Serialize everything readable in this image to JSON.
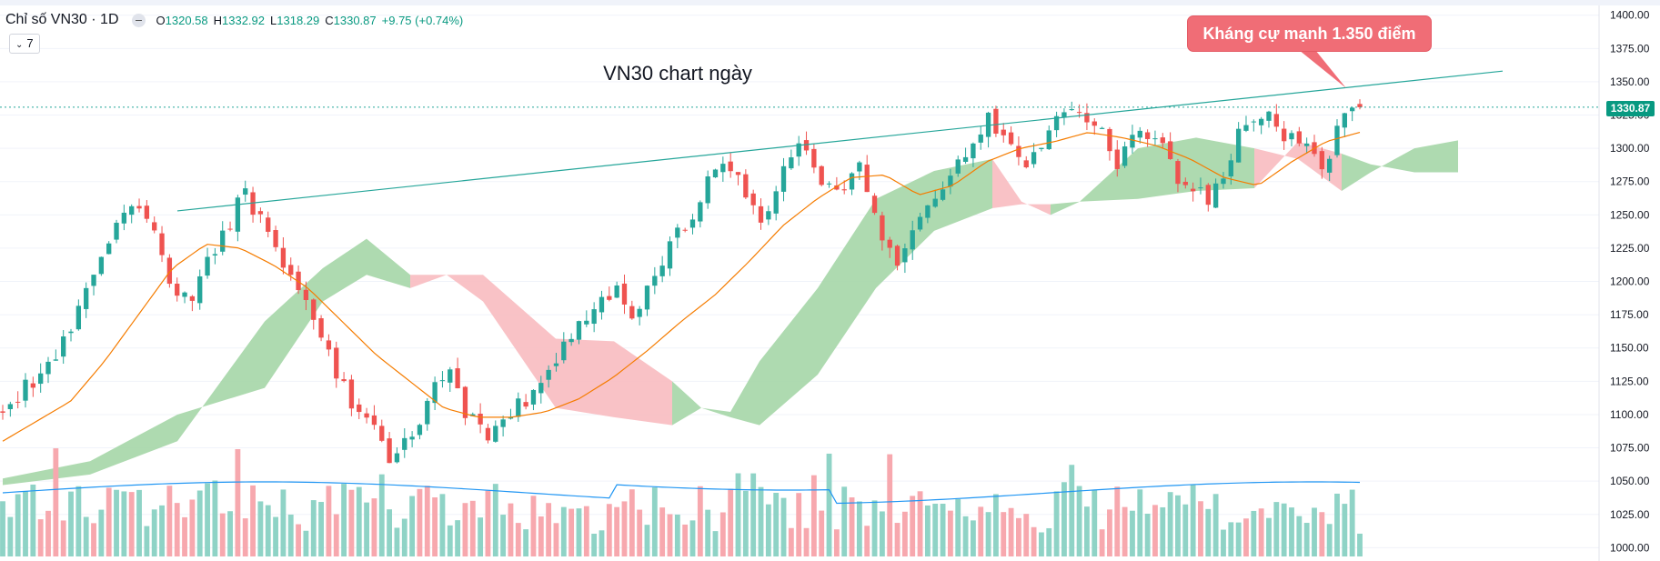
{
  "header": {
    "symbol": "Chỉ số VN30 · 1D",
    "o_key": "O",
    "open": "1320.58",
    "h_key": "H",
    "high": "1332.92",
    "l_key": "L",
    "low": "1318.29",
    "c_key": "C",
    "close": "1330.87",
    "change": "+9.75 (+0.74%)",
    "indicators_count": "7"
  },
  "annotations": {
    "title": "VN30 chart ngày",
    "callout": "Kháng cự mạnh 1.350 điểm"
  },
  "chart_data": {
    "type": "candlestick",
    "title": "VN30 chart ngày",
    "symbol": "Chỉ số VN30",
    "interval": "1D",
    "y_axis": {
      "range": [
        990,
        1408
      ],
      "ticks": [
        "1400.00",
        "1375.00",
        "1350.00",
        "1325.00",
        "1300.00",
        "1275.00",
        "1250.00",
        "1225.00",
        "1200.00",
        "1175.00",
        "1150.00",
        "1125.00",
        "1100.00",
        "1075.00",
        "1050.00",
        "1025.00",
        "1000.00"
      ]
    },
    "last_price": "1330.87",
    "last_price_value": 1330.87,
    "close_waypoints": [
      1100,
      1118,
      1132,
      1145,
      1180,
      1210,
      1240,
      1262,
      1250,
      1195,
      1185,
      1215,
      1240,
      1265,
      1245,
      1220,
      1190,
      1160,
      1130,
      1100,
      1090,
      1060,
      1085,
      1115,
      1130,
      1100,
      1085,
      1095,
      1110,
      1125,
      1150,
      1170,
      1180,
      1192,
      1170,
      1200,
      1230,
      1250,
      1275,
      1290,
      1265,
      1240,
      1285,
      1300,
      1280,
      1260,
      1290,
      1250,
      1210,
      1238,
      1265,
      1280,
      1300,
      1320,
      1310,
      1285,
      1310,
      1330,
      1330,
      1315,
      1290,
      1315,
      1310,
      1280,
      1275,
      1260,
      1295,
      1322,
      1330,
      1310,
      1300,
      1285,
      1320,
      1330.87
    ],
    "candle_count": 180,
    "ma20_waypoints": [
      1080,
      1095,
      1110,
      1140,
      1175,
      1210,
      1228,
      1225,
      1212,
      1195,
      1170,
      1145,
      1125,
      1105,
      1098,
      1098,
      1102,
      1112,
      1128,
      1148,
      1170,
      1190,
      1215,
      1242,
      1262,
      1278,
      1280,
      1265,
      1272,
      1290,
      1300,
      1305,
      1312,
      1308,
      1302,
      1292,
      1278,
      1272,
      1290,
      1305,
      1312
    ],
    "ichimoku_cloud": [
      {
        "pos": 0.0,
        "a": 1047,
        "b": 1052,
        "trend": "up"
      },
      {
        "pos": 0.06,
        "a": 1055,
        "b": 1065,
        "trend": "up"
      },
      {
        "pos": 0.12,
        "a": 1080,
        "b": 1100,
        "trend": "up"
      },
      {
        "pos": 0.18,
        "a": 1170,
        "b": 1120,
        "trend": "up"
      },
      {
        "pos": 0.22,
        "a": 1210,
        "b": 1185,
        "trend": "up"
      },
      {
        "pos": 0.25,
        "a": 1232,
        "b": 1205,
        "trend": "up"
      },
      {
        "pos": 0.28,
        "a": 1205,
        "b": 1195,
        "trend": "up"
      },
      {
        "pos": 0.305,
        "a": 1205,
        "b": 1205,
        "trend": "down"
      },
      {
        "pos": 0.33,
        "a": 1185,
        "b": 1205,
        "trend": "down"
      },
      {
        "pos": 0.38,
        "a": 1105,
        "b": 1157,
        "trend": "down"
      },
      {
        "pos": 0.42,
        "a": 1098,
        "b": 1155,
        "trend": "down"
      },
      {
        "pos": 0.46,
        "a": 1092,
        "b": 1125,
        "trend": "down"
      },
      {
        "pos": 0.48,
        "a": 1105,
        "b": 1105,
        "trend": "up"
      },
      {
        "pos": 0.5,
        "a": 1102,
        "b": 1098,
        "trend": "up"
      },
      {
        "pos": 0.52,
        "a": 1140,
        "b": 1092,
        "trend": "up"
      },
      {
        "pos": 0.56,
        "a": 1195,
        "b": 1130,
        "trend": "up"
      },
      {
        "pos": 0.6,
        "a": 1262,
        "b": 1195,
        "trend": "up"
      },
      {
        "pos": 0.64,
        "a": 1283,
        "b": 1238,
        "trend": "up"
      },
      {
        "pos": 0.68,
        "a": 1292,
        "b": 1255,
        "trend": "up"
      },
      {
        "pos": 0.7,
        "a": 1260,
        "b": 1258,
        "trend": "down"
      },
      {
        "pos": 0.72,
        "a": 1250,
        "b": 1258,
        "trend": "down"
      },
      {
        "pos": 0.74,
        "a": 1260,
        "b": 1260,
        "trend": "up"
      },
      {
        "pos": 0.78,
        "a": 1300,
        "b": 1262,
        "trend": "up"
      },
      {
        "pos": 0.82,
        "a": 1308,
        "b": 1268,
        "trend": "up"
      },
      {
        "pos": 0.86,
        "a": 1300,
        "b": 1270,
        "trend": "up"
      },
      {
        "pos": 0.89,
        "a": 1292,
        "b": 1305,
        "trend": "down"
      },
      {
        "pos": 0.92,
        "a": 1268,
        "b": 1296,
        "trend": "down"
      },
      {
        "pos": 0.94,
        "a": 1282,
        "b": 1288,
        "trend": "up"
      },
      {
        "pos": 0.97,
        "a": 1300,
        "b": 1282,
        "trend": "up"
      },
      {
        "pos": 1.0,
        "a": 1306,
        "b": 1282,
        "trend": "up"
      }
    ],
    "resistance_line": {
      "from": 1253,
      "to": 1358,
      "label_value": 1350
    },
    "volume": {
      "scale": "relative",
      "avg_level": 0.4
    }
  },
  "colors": {
    "up": "#26a69a",
    "down": "#ef5350",
    "up_volume": "#8fd3c6",
    "down_volume": "#f7a8ae",
    "cloud_up": "#a5d6a7",
    "cloud_down": "#f8bbc0",
    "ma": "#f57c00",
    "volume_avg": "#2196f3",
    "trendline": "#26a69a",
    "grid": "#f0f3fa"
  }
}
